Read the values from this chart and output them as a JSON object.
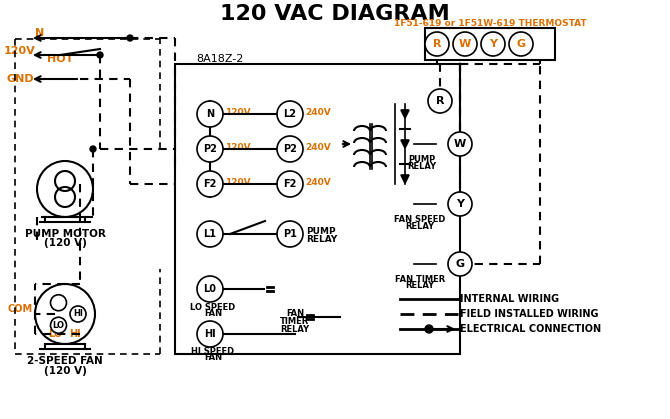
{
  "title": "120 VAC DIAGRAM",
  "title_fontsize": 16,
  "title_fontweight": "bold",
  "thermostat_label": "1F51-619 or 1F51W-619 THERMOSTAT",
  "thermostat_color": "#d97000",
  "module_label": "8A18Z-2",
  "bg_color": "#ffffff",
  "line_color": "#000000",
  "orange_color": "#d97000",
  "legend_items": [
    {
      "label": "INTERNAL WIRING",
      "style": "solid"
    },
    {
      "label": "FIELD INSTALLED WIRING",
      "style": "dashed_thick"
    },
    {
      "label": "ELECTRICAL CONNECTION",
      "style": "dot_arrow"
    }
  ]
}
